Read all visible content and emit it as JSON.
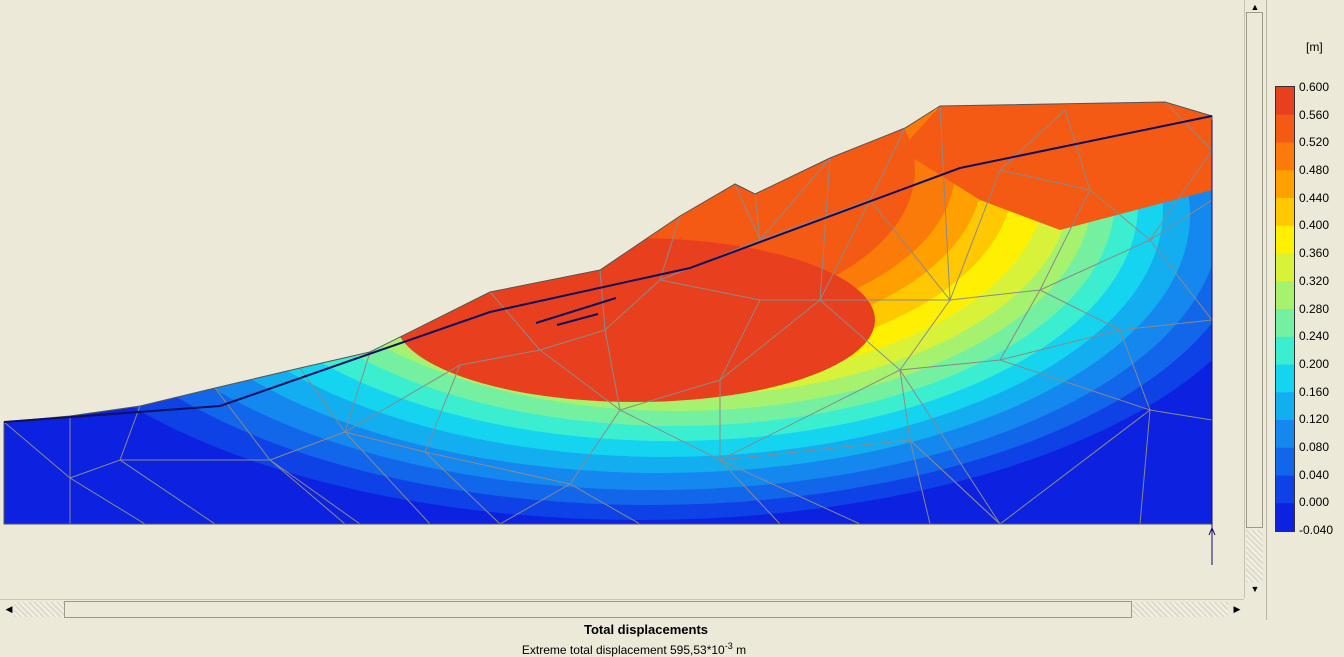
{
  "legend": {
    "unit": "[m]",
    "ticks": [
      "0.600",
      "0.560",
      "0.520",
      "0.480",
      "0.440",
      "0.400",
      "0.360",
      "0.320",
      "0.280",
      "0.240",
      "0.200",
      "0.160",
      "0.120",
      "0.080",
      "0.040",
      "0.000",
      "-0.040"
    ],
    "colors": [
      "#e8401e",
      "#f55a14",
      "#fa7a0a",
      "#ffa000",
      "#ffc800",
      "#ffef00",
      "#d8f23a",
      "#a6f26e",
      "#74f0a0",
      "#3ceed0",
      "#14d4f0",
      "#12aef0",
      "#1488ee",
      "#1266ea",
      "#0e42e6",
      "#0c22e0"
    ]
  },
  "contour_colors": {
    "boundary": "#555555",
    "mesh": "#8a8a8a",
    "structures": "#101060"
  },
  "caption": {
    "title": "Total displacements",
    "subtitle_prefix": "Extreme total displacement 595,53*10",
    "subtitle_exponent": "-3",
    "subtitle_unit": " m"
  },
  "icons": {
    "left": "arrow-left-icon",
    "right": "arrow-right-icon",
    "up": "arrow-up-icon",
    "down": "arrow-down-icon"
  }
}
